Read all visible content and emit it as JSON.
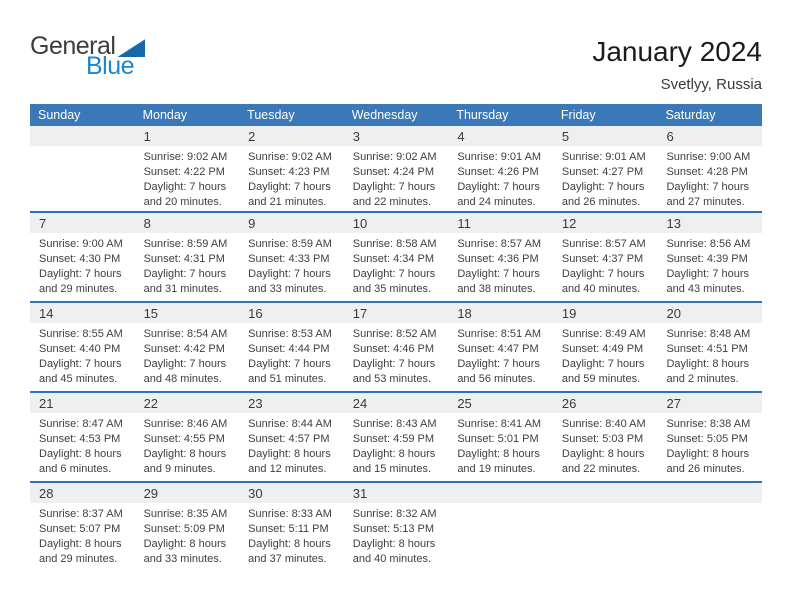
{
  "logo": {
    "line1": "General",
    "line2": "Blue"
  },
  "header": {
    "title": "January 2024",
    "location": "Svetlyy, Russia"
  },
  "colors": {
    "header_bg": "#3a78b8",
    "separator": "#2e74b5",
    "band": "#efefef",
    "logo_blue": "#1b87d2",
    "logo_triangle": "#1568a9"
  },
  "calendar": {
    "day_headers": [
      "Sunday",
      "Monday",
      "Tuesday",
      "Wednesday",
      "Thursday",
      "Friday",
      "Saturday"
    ],
    "labels": {
      "sunrise": "Sunrise:",
      "sunset": "Sunset:",
      "daylight": "Daylight:"
    },
    "weeks": [
      [
        null,
        {
          "day": 1,
          "sunrise": "9:02 AM",
          "sunset": "4:22 PM",
          "daylight": "7 hours and 20 minutes."
        },
        {
          "day": 2,
          "sunrise": "9:02 AM",
          "sunset": "4:23 PM",
          "daylight": "7 hours and 21 minutes."
        },
        {
          "day": 3,
          "sunrise": "9:02 AM",
          "sunset": "4:24 PM",
          "daylight": "7 hours and 22 minutes."
        },
        {
          "day": 4,
          "sunrise": "9:01 AM",
          "sunset": "4:26 PM",
          "daylight": "7 hours and 24 minutes."
        },
        {
          "day": 5,
          "sunrise": "9:01 AM",
          "sunset": "4:27 PM",
          "daylight": "7 hours and 26 minutes."
        },
        {
          "day": 6,
          "sunrise": "9:00 AM",
          "sunset": "4:28 PM",
          "daylight": "7 hours and 27 minutes."
        }
      ],
      [
        {
          "day": 7,
          "sunrise": "9:00 AM",
          "sunset": "4:30 PM",
          "daylight": "7 hours and 29 minutes."
        },
        {
          "day": 8,
          "sunrise": "8:59 AM",
          "sunset": "4:31 PM",
          "daylight": "7 hours and 31 minutes."
        },
        {
          "day": 9,
          "sunrise": "8:59 AM",
          "sunset": "4:33 PM",
          "daylight": "7 hours and 33 minutes."
        },
        {
          "day": 10,
          "sunrise": "8:58 AM",
          "sunset": "4:34 PM",
          "daylight": "7 hours and 35 minutes."
        },
        {
          "day": 11,
          "sunrise": "8:57 AM",
          "sunset": "4:36 PM",
          "daylight": "7 hours and 38 minutes."
        },
        {
          "day": 12,
          "sunrise": "8:57 AM",
          "sunset": "4:37 PM",
          "daylight": "7 hours and 40 minutes."
        },
        {
          "day": 13,
          "sunrise": "8:56 AM",
          "sunset": "4:39 PM",
          "daylight": "7 hours and 43 minutes."
        }
      ],
      [
        {
          "day": 14,
          "sunrise": "8:55 AM",
          "sunset": "4:40 PM",
          "daylight": "7 hours and 45 minutes."
        },
        {
          "day": 15,
          "sunrise": "8:54 AM",
          "sunset": "4:42 PM",
          "daylight": "7 hours and 48 minutes."
        },
        {
          "day": 16,
          "sunrise": "8:53 AM",
          "sunset": "4:44 PM",
          "daylight": "7 hours and 51 minutes."
        },
        {
          "day": 17,
          "sunrise": "8:52 AM",
          "sunset": "4:46 PM",
          "daylight": "7 hours and 53 minutes."
        },
        {
          "day": 18,
          "sunrise": "8:51 AM",
          "sunset": "4:47 PM",
          "daylight": "7 hours and 56 minutes."
        },
        {
          "day": 19,
          "sunrise": "8:49 AM",
          "sunset": "4:49 PM",
          "daylight": "7 hours and 59 minutes."
        },
        {
          "day": 20,
          "sunrise": "8:48 AM",
          "sunset": "4:51 PM",
          "daylight": "8 hours and 2 minutes."
        }
      ],
      [
        {
          "day": 21,
          "sunrise": "8:47 AM",
          "sunset": "4:53 PM",
          "daylight": "8 hours and 6 minutes."
        },
        {
          "day": 22,
          "sunrise": "8:46 AM",
          "sunset": "4:55 PM",
          "daylight": "8 hours and 9 minutes."
        },
        {
          "day": 23,
          "sunrise": "8:44 AM",
          "sunset": "4:57 PM",
          "daylight": "8 hours and 12 minutes."
        },
        {
          "day": 24,
          "sunrise": "8:43 AM",
          "sunset": "4:59 PM",
          "daylight": "8 hours and 15 minutes."
        },
        {
          "day": 25,
          "sunrise": "8:41 AM",
          "sunset": "5:01 PM",
          "daylight": "8 hours and 19 minutes."
        },
        {
          "day": 26,
          "sunrise": "8:40 AM",
          "sunset": "5:03 PM",
          "daylight": "8 hours and 22 minutes."
        },
        {
          "day": 27,
          "sunrise": "8:38 AM",
          "sunset": "5:05 PM",
          "daylight": "8 hours and 26 minutes."
        }
      ],
      [
        {
          "day": 28,
          "sunrise": "8:37 AM",
          "sunset": "5:07 PM",
          "daylight": "8 hours and 29 minutes."
        },
        {
          "day": 29,
          "sunrise": "8:35 AM",
          "sunset": "5:09 PM",
          "daylight": "8 hours and 33 minutes."
        },
        {
          "day": 30,
          "sunrise": "8:33 AM",
          "sunset": "5:11 PM",
          "daylight": "8 hours and 37 minutes."
        },
        {
          "day": 31,
          "sunrise": "8:32 AM",
          "sunset": "5:13 PM",
          "daylight": "8 hours and 40 minutes."
        },
        null,
        null,
        null
      ]
    ]
  }
}
